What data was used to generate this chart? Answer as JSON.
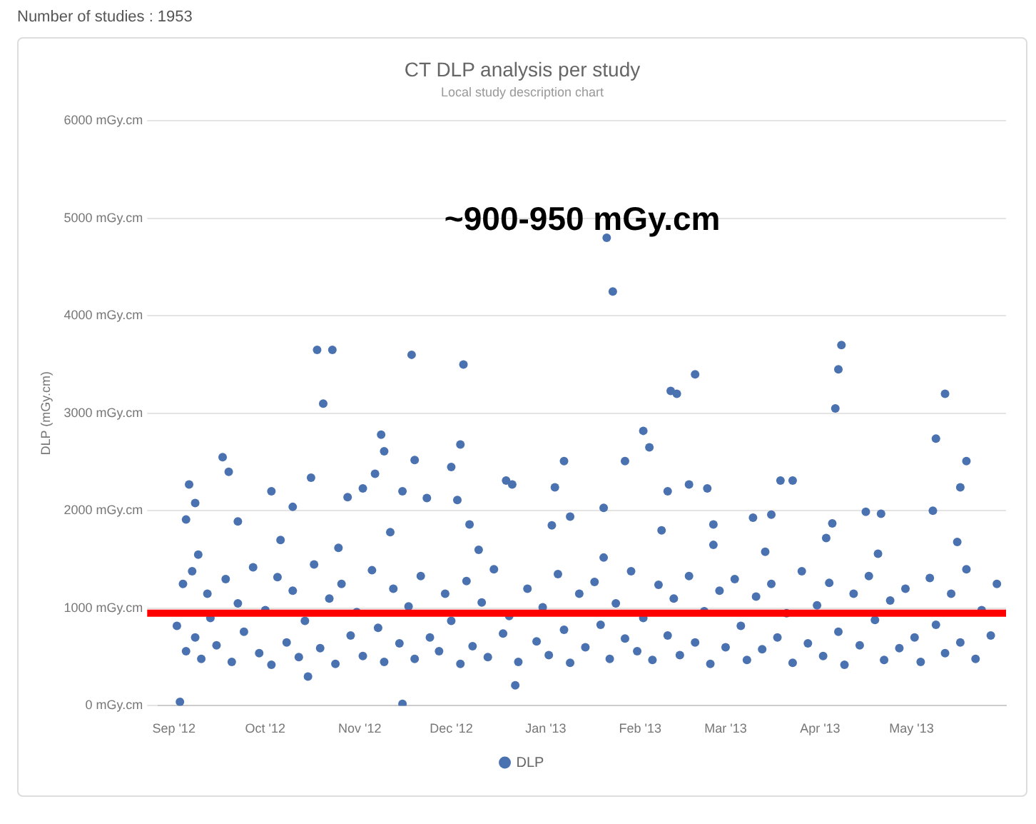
{
  "chart_data": {
    "type": "scatter",
    "title": "CT DLP analysis per study",
    "subtitle": "Local study description chart",
    "ylabel": "DLP (mGy.cm)",
    "annotations": [
      "Number of studies : 1953",
      "~900-950 mGy.cm"
    ],
    "xlim": [
      "2012-08-27",
      "2013-06-01"
    ],
    "xticks": [
      {
        "value": "2012-09-01",
        "label": "Sep '12"
      },
      {
        "value": "2012-10-01",
        "label": "Oct '12"
      },
      {
        "value": "2012-11-01",
        "label": "Nov '12"
      },
      {
        "value": "2012-12-01",
        "label": "Dec '12"
      },
      {
        "value": "2013-01-01",
        "label": "Jan '13"
      },
      {
        "value": "2013-02-01",
        "label": "Feb '13"
      },
      {
        "value": "2013-03-01",
        "label": "Mar '13"
      },
      {
        "value": "2013-04-01",
        "label": "Apr '13"
      },
      {
        "value": "2013-05-01",
        "label": "May '13"
      }
    ],
    "ylim": [
      0,
      6000
    ],
    "yticks": [
      {
        "value": 0,
        "label": "0 mGy.cm"
      },
      {
        "value": 1000,
        "label": "1000 mGy.cm"
      },
      {
        "value": 2000,
        "label": "2000 mGy.cm"
      },
      {
        "value": 3000,
        "label": "3000 mGy.cm"
      },
      {
        "value": 4000,
        "label": "4000 mGy.cm"
      },
      {
        "value": 5000,
        "label": "5000 mGy.cm"
      },
      {
        "value": 6000,
        "label": "6000 mGy.cm"
      }
    ],
    "grid": "y",
    "legend": "bottom",
    "marker": "circle",
    "ref_lines": [
      {
        "axis": "y",
        "value": 950,
        "color": "#ff0000"
      }
    ],
    "series": [
      {
        "name": "DLP",
        "color": "#4a72b0",
        "x": [
          "2013-01-21",
          "2013-01-23",
          "2012-10-18",
          "2012-10-23",
          "2012-10-20",
          "2012-11-18",
          "2012-12-05",
          "2013-02-02",
          "2013-02-04",
          "2013-02-11",
          "2013-02-13",
          "2013-02-19",
          "2013-04-08",
          "2013-04-07",
          "2013-04-06",
          "2013-05-12",
          "2013-05-09",
          "2013-05-19",
          "2013-05-17",
          "2012-09-17",
          "2012-09-19",
          "2012-09-06",
          "2012-09-08",
          "2012-09-05",
          "2012-11-08",
          "2012-11-09",
          "2012-11-06",
          "2012-10-16",
          "2012-11-19",
          "2012-12-01",
          "2012-12-04",
          "2013-01-07",
          "2013-01-27",
          "2013-01-04",
          "2012-12-19",
          "2013-02-17",
          "2013-02-23",
          "2013-02-10",
          "2013-03-19",
          "2013-03-23",
          "2013-03-10",
          "2013-03-16",
          "2013-04-16",
          "2013-04-21",
          "2012-10-03",
          "2012-10-10",
          "2012-09-22",
          "2012-10-28",
          "2012-11-02",
          "2012-11-23",
          "2012-11-15",
          "2012-12-03",
          "2012-12-07",
          "2012-12-21",
          "2013-01-09",
          "2013-01-20",
          "2013-02-25",
          "2013-04-05",
          "2013-05-08",
          "2012-09-03",
          "2012-11-15",
          "2012-12-22",
          "2012-10-15",
          "2012-09-02",
          "2012-09-04",
          "2012-09-05",
          "2012-09-07",
          "2012-09-08",
          "2012-09-10",
          "2012-09-12",
          "2012-09-13",
          "2012-09-15",
          "2012-09-18",
          "2012-09-20",
          "2012-09-22",
          "2012-09-24",
          "2012-09-27",
          "2012-09-29",
          "2012-10-01",
          "2012-10-03",
          "2012-10-05",
          "2012-10-08",
          "2012-10-10",
          "2012-10-12",
          "2012-10-14",
          "2012-10-17",
          "2012-10-19",
          "2012-10-22",
          "2012-10-24",
          "2012-10-26",
          "2012-10-29",
          "2012-10-31",
          "2012-11-02",
          "2012-11-05",
          "2012-11-07",
          "2012-11-09",
          "2012-11-12",
          "2012-11-14",
          "2012-11-17",
          "2012-11-19",
          "2012-11-21",
          "2012-11-24",
          "2012-11-27",
          "2012-11-29",
          "2012-12-01",
          "2012-12-04",
          "2012-12-06",
          "2012-12-08",
          "2012-12-11",
          "2012-12-13",
          "2012-12-15",
          "2012-12-18",
          "2012-12-20",
          "2012-12-23",
          "2012-12-26",
          "2012-12-29",
          "2012-12-31",
          "2013-01-02",
          "2013-01-05",
          "2013-01-07",
          "2013-01-09",
          "2013-01-12",
          "2013-01-14",
          "2013-01-17",
          "2013-01-19",
          "2013-01-22",
          "2013-01-24",
          "2013-01-27",
          "2013-01-29",
          "2013-01-31",
          "2013-02-02",
          "2013-02-05",
          "2013-02-07",
          "2013-02-10",
          "2013-02-12",
          "2013-02-14",
          "2013-02-17",
          "2013-02-19",
          "2013-02-22",
          "2013-02-24",
          "2013-02-27",
          "2013-03-01",
          "2013-03-04",
          "2013-03-06",
          "2013-03-08",
          "2013-03-11",
          "2013-03-13",
          "2013-03-16",
          "2013-03-18",
          "2013-03-21",
          "2013-03-23",
          "2013-03-26",
          "2013-03-28",
          "2013-03-31",
          "2013-04-02",
          "2013-04-04",
          "2013-04-07",
          "2013-04-09",
          "2013-04-12",
          "2013-04-14",
          "2013-04-17",
          "2013-04-19",
          "2013-04-22",
          "2013-04-24",
          "2013-04-27",
          "2013-04-29",
          "2013-05-02",
          "2013-05-04",
          "2013-05-07",
          "2013-05-09",
          "2013-05-12",
          "2013-05-14",
          "2013-05-17",
          "2013-05-19",
          "2013-05-22",
          "2013-05-24",
          "2013-05-27",
          "2013-05-29",
          "2012-09-09",
          "2012-10-06",
          "2012-10-25",
          "2012-11-11",
          "2012-12-10",
          "2013-01-03",
          "2013-01-20",
          "2013-02-08",
          "2013-02-25",
          "2013-03-14",
          "2013-04-03",
          "2013-04-20",
          "2013-05-16"
        ],
        "values": [
          4800,
          4250,
          3650,
          3650,
          3100,
          3600,
          3500,
          2820,
          2650,
          3230,
          3200,
          3400,
          3700,
          3450,
          3050,
          3200,
          2740,
          2510,
          2240,
          2550,
          2400,
          2270,
          2080,
          1910,
          2780,
          2610,
          2380,
          2340,
          2520,
          2450,
          2680,
          2510,
          2510,
          2240,
          2310,
          2270,
          2230,
          2200,
          2310,
          2310,
          1930,
          1960,
          1990,
          1970,
          2200,
          2040,
          1890,
          2140,
          2230,
          2130,
          2200,
          2110,
          1860,
          2270,
          1940,
          2030,
          1860,
          1870,
          2000,
          40,
          20,
          210,
          300,
          820,
          1250,
          560,
          1380,
          700,
          480,
          1150,
          900,
          620,
          1300,
          450,
          1050,
          760,
          1420,
          540,
          980,
          420,
          1320,
          650,
          1180,
          500,
          870,
          1450,
          590,
          1100,
          430,
          1250,
          720,
          960,
          510,
          1390,
          800,
          450,
          1200,
          640,
          1020,
          480,
          1330,
          700,
          560,
          1150,
          870,
          430,
          1280,
          610,
          1060,
          500,
          1400,
          740,
          920,
          450,
          1200,
          660,
          1010,
          520,
          1350,
          780,
          440,
          1150,
          600,
          1270,
          830,
          480,
          1050,
          690,
          1380,
          560,
          900,
          470,
          1240,
          720,
          1100,
          520,
          1330,
          650,
          970,
          430,
          1180,
          600,
          1300,
          820,
          470,
          1120,
          580,
          1250,
          700,
          950,
          440,
          1380,
          640,
          1030,
          510,
          1260,
          760,
          420,
          1150,
          620,
          1330,
          880,
          470,
          1080,
          590,
          1200,
          700,
          450,
          1310,
          830,
          540,
          1150,
          650,
          1400,
          480,
          980,
          720,
          1250,
          1550,
          1700,
          1620,
          1780,
          1600,
          1850,
          1520,
          1800,
          1650,
          1580,
          1720,
          1560,
          1680
        ]
      }
    ]
  }
}
